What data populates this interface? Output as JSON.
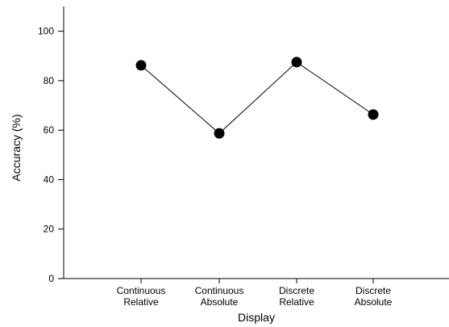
{
  "chart_data": {
    "type": "line",
    "title": "",
    "xlabel": "Display",
    "ylabel": "Accuracy (%)",
    "categories": [
      [
        "Continuous",
        "Relative"
      ],
      [
        "Continuous",
        "Absolute"
      ],
      [
        "Discrete",
        "Relative"
      ],
      [
        "Discrete",
        "Absolute"
      ]
    ],
    "values": [
      86.2,
      58.7,
      87.5,
      66.3
    ],
    "ylim": [
      0,
      110
    ],
    "yticks": [
      0,
      20,
      40,
      60,
      80,
      100
    ],
    "grid": false,
    "legend": "none",
    "colors": {
      "line": "#000000",
      "marker": "#000000",
      "axis": "#000000"
    }
  }
}
